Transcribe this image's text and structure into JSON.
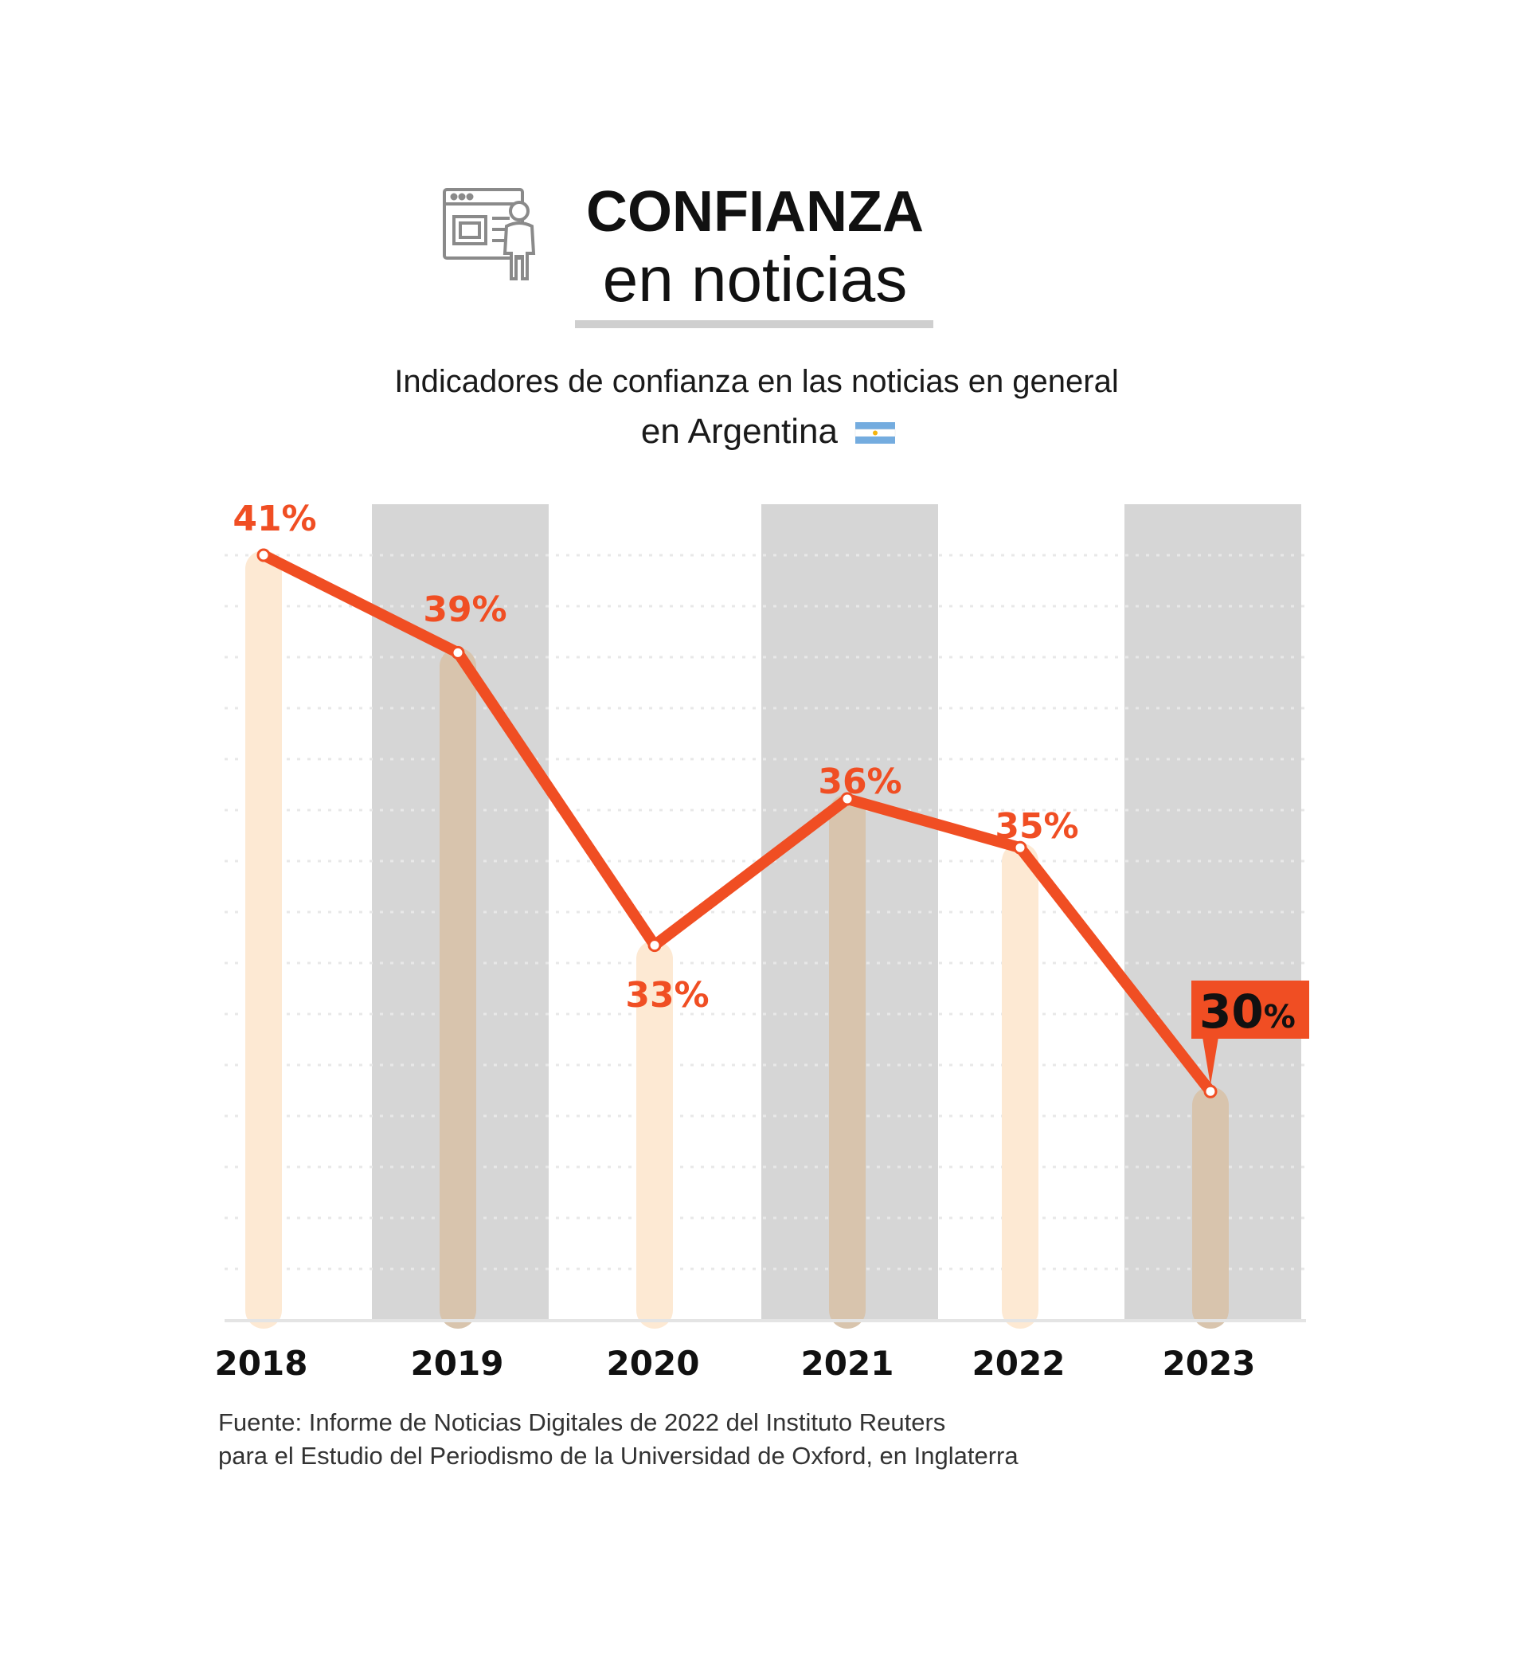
{
  "header": {
    "title_line1": "CONFIANZA",
    "title_line2": "en noticias",
    "subtitle_line1": "Indicadores de confianza en las noticias en general",
    "subtitle_line2": "en Argentina",
    "icon": "newspaper-presenter-icon",
    "flag": "argentina-flag-icon"
  },
  "source": {
    "line1": "Fuente: Informe de Noticias Digitales de 2022 del Instituto Reuters",
    "line2": "para el Estudio del Periodismo de la Universidad de Oxford, en Inglaterra"
  },
  "colors": {
    "line": "#f04e23",
    "label": "#f04e23",
    "pill": "#fde9d3",
    "pill_on_band": "#d8c4ad",
    "band": "#d6d6d6",
    "grid": "#e8e8e8",
    "highlight_bg": "#f04e23",
    "highlight_text": "#111111",
    "flag_blue": "#74acdf",
    "flag_sun": "#f6b40e"
  },
  "chart_data": {
    "type": "line",
    "title": "CONFIANZA en noticias",
    "subtitle": "Indicadores de confianza en las noticias en general en Argentina",
    "categories": [
      "2018",
      "2019",
      "2020",
      "2021",
      "2022",
      "2023"
    ],
    "values": [
      41,
      39,
      33,
      36,
      35,
      30
    ],
    "value_labels": [
      "41%",
      "39%",
      "33%",
      "36%",
      "35%",
      "30%"
    ],
    "highlight": {
      "index": 5,
      "number": "30",
      "suffix": "%"
    },
    "ylim": [
      24,
      42
    ],
    "xlabel": "",
    "ylabel": "",
    "grid": true,
    "legend": "none"
  }
}
